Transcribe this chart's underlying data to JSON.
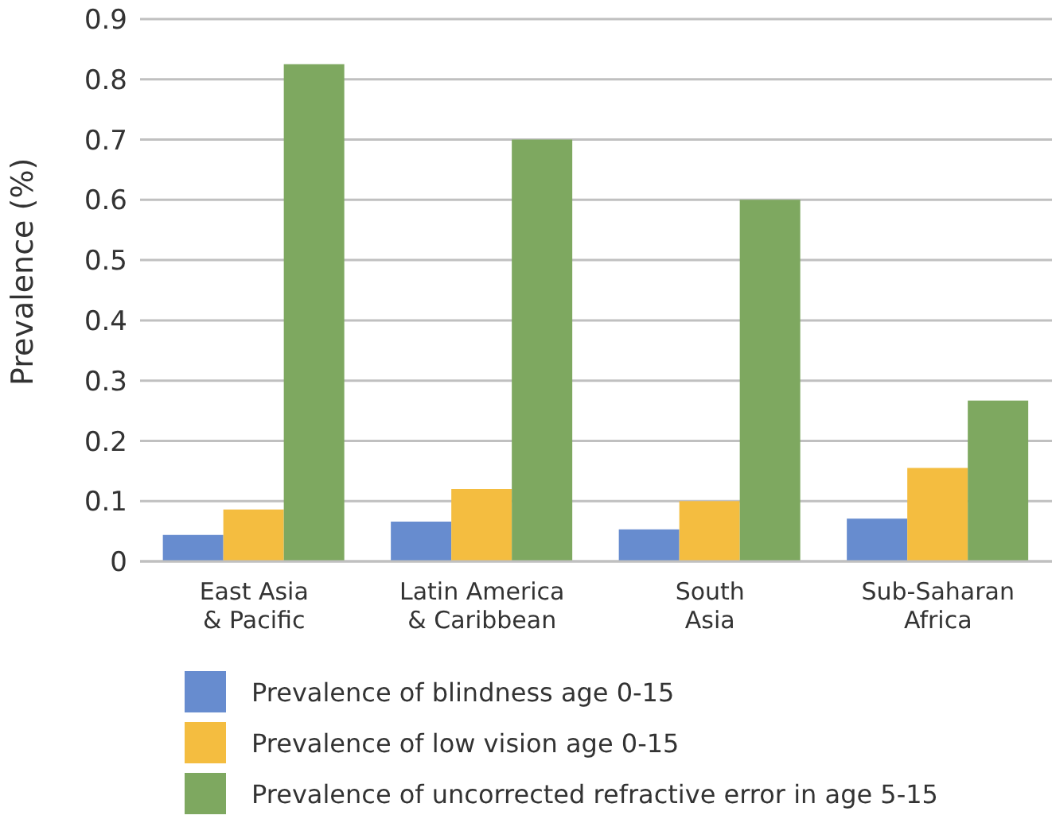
{
  "chart_data": {
    "type": "bar",
    "ylabel": "Prevalence (%)",
    "categories": [
      "East Asia\n& Pacific",
      "Latin America\n& Caribbean",
      "South\nAsia",
      "Sub-Saharan\nAfrica"
    ],
    "series": [
      {
        "name": "Prevalence of blindness age 0-15",
        "color": "#678ccf",
        "values": [
          0.044,
          0.066,
          0.053,
          0.071
        ]
      },
      {
        "name": "Prevalence of low vision age 0-15",
        "color": "#f4bd40",
        "values": [
          0.086,
          0.12,
          0.1,
          0.155
        ]
      },
      {
        "name": "Prevalence of uncorrected refractive error in age 5-15",
        "color": "#7ea860",
        "values": [
          0.825,
          0.7,
          0.6,
          0.267
        ]
      }
    ],
    "ylim": [
      0,
      0.9
    ],
    "yticks": [
      {
        "value": 0,
        "label": "0"
      },
      0.1,
      0.2,
      0.3,
      0.4,
      0.5,
      0.6,
      0.7,
      0.8,
      0.9
    ],
    "grid": "y",
    "legend": "bottom"
  }
}
